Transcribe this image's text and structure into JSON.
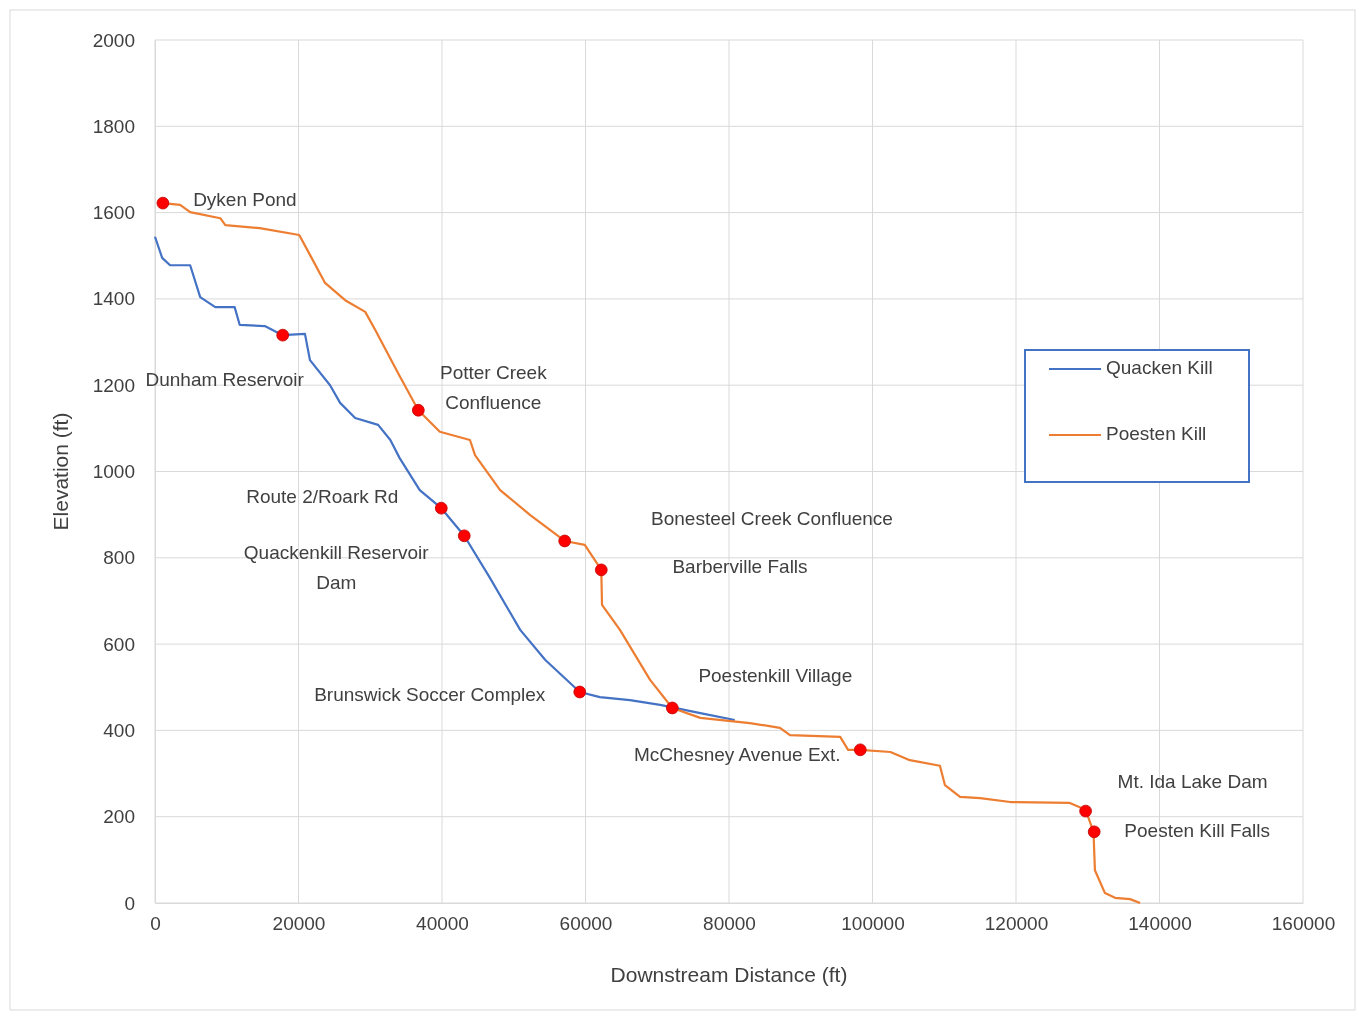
{
  "chart_data": {
    "type": "line",
    "xlabel": "Downstream Distance (ft)",
    "ylabel": "Elevation (ft)",
    "xlim": [
      0,
      160000
    ],
    "xticks": [
      0,
      20000,
      40000,
      60000,
      80000,
      100000,
      120000,
      140000,
      160000
    ],
    "ylim": [
      0,
      2000
    ],
    "yticks": [
      0,
      200,
      400,
      600,
      800,
      1000,
      1200,
      1400,
      1600,
      1800,
      2000
    ],
    "grid": true,
    "legend": "right",
    "marker": "none",
    "line_style": "solid",
    "series": [
      {
        "name": "Quacken Kill",
        "color": "#4472c4",
        "x": [
          0,
          1000,
          2100,
          4900,
          6300,
          8400,
          11100,
          11800,
          15300,
          17800,
          20900,
          21600,
          24400,
          25800,
          27900,
          31100,
          32800,
          34100,
          36900,
          39900,
          43100,
          46700,
          50900,
          54400,
          59200,
          62000,
          66200,
          70400,
          76000,
          80800
        ],
        "values": [
          1544,
          1495,
          1478,
          1478,
          1404,
          1381,
          1381,
          1340,
          1337,
          1316,
          1319,
          1258,
          1200,
          1159,
          1124,
          1108,
          1073,
          1031,
          957,
          915,
          851,
          753,
          633,
          563,
          489,
          477,
          470,
          459,
          440,
          424
        ]
      },
      {
        "name": "Poesten Kill",
        "color": "#ed7d31",
        "x": [
          1100,
          3500,
          4900,
          9100,
          9800,
          14600,
          20100,
          21600,
          23700,
          26500,
          29300,
          30700,
          34000,
          36700,
          39700,
          43900,
          44600,
          48100,
          52300,
          57100,
          59900,
          62200,
          62300,
          64800,
          69000,
          72100,
          76000,
          82900,
          87100,
          88500,
          95500,
          96600,
          98300,
          102500,
          105200,
          109400,
          110100,
          112200,
          115000,
          119200,
          127500,
          129700,
          130800,
          131000,
          132400,
          133800,
          135900,
          137300
        ],
        "values": [
          1622,
          1618,
          1601,
          1587,
          1571,
          1564,
          1548,
          1502,
          1437,
          1397,
          1370,
          1328,
          1224,
          1142,
          1092,
          1073,
          1038,
          957,
          899,
          839,
          830,
          772,
          691,
          633,
          517,
          452,
          429,
          417,
          406,
          389,
          385,
          355,
          355,
          350,
          331,
          318,
          273,
          246,
          243,
          234,
          232,
          216,
          165,
          76,
          23,
          12,
          9,
          0
        ]
      },
      {
        "type": "scatter",
        "marker": "circle",
        "color": "#ff0000",
        "x": [
          1100,
          17800,
          36700,
          39900,
          43100,
          59200,
          57100,
          62200,
          72100,
          98300,
          129700,
          130900
        ],
        "values": [
          1622,
          1316,
          1142,
          915,
          851,
          489,
          839,
          772,
          452,
          355,
          213,
          165
        ]
      }
    ],
    "annotations": [
      {
        "text": "Dyken Pond",
        "x": 1100,
        "y": 1622
      },
      {
        "text": "Dunham Reservoir",
        "x": 17800,
        "y": 1316
      },
      {
        "text": "Potter Creek Confluence",
        "x": 36700,
        "y": 1142
      },
      {
        "text": "Route 2/Roark Rd",
        "x": 39900,
        "y": 915
      },
      {
        "text": "Quackenkill Reservoir Dam",
        "x": 43100,
        "y": 851
      },
      {
        "text": "Brunswick Soccer Complex",
        "x": 59200,
        "y": 489
      },
      "Bonesteel Creek Confluence",
      "Barberville Falls",
      {
        "text": "Poestenkill Village",
        "x": 72100,
        "y": 452
      },
      {
        "text": "McChesney Avenue Ext.",
        "x": 98300,
        "y": 355
      },
      {
        "text": "Mt. Ida Lake Dam",
        "x": 129700,
        "y": 213
      },
      {
        "text": "Poesten Kill Falls",
        "x": 130900,
        "y": 165
      }
    ]
  }
}
